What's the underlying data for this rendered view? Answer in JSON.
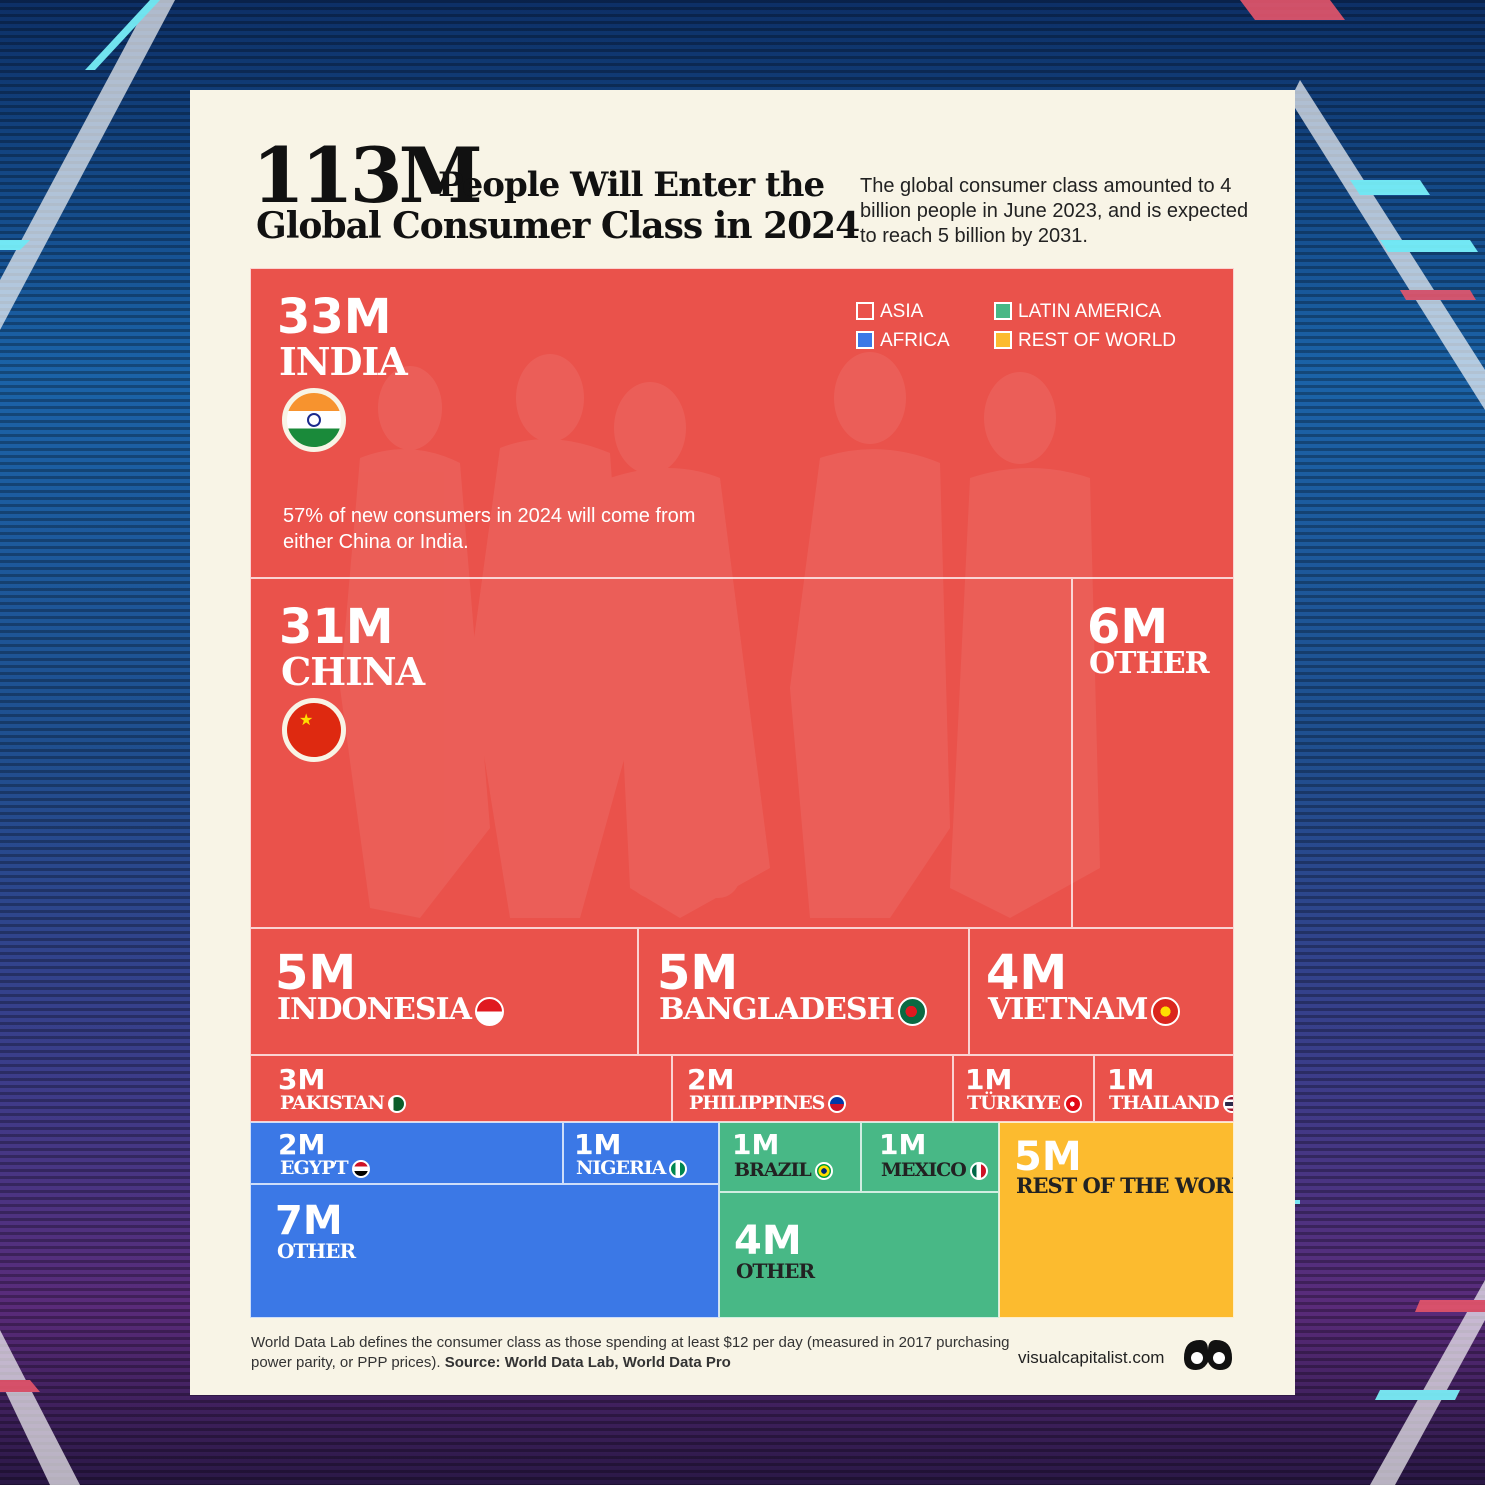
{
  "header": {
    "title_number": "113M",
    "title_line1_rest": "People Will Enter the",
    "title_line2": "Global Consumer Class in 2024",
    "subtitle": "The global consumer class amounted to 4 billion people in June 2023, and is expected to reach 5 billion by 2031."
  },
  "colors": {
    "asia": "#ea524b",
    "africa": "#3b78e6",
    "latin_america": "#48b886",
    "rest_of_world": "#fcbb2f"
  },
  "legend": [
    {
      "label": "ASIA",
      "key": "asia"
    },
    {
      "label": "LATIN AMERICA",
      "key": "latin_america"
    },
    {
      "label": "AFRICA",
      "key": "africa"
    },
    {
      "label": "REST OF WORLD",
      "key": "rest_of_world"
    }
  ],
  "note": "57% of new consumers in 2024 will come from either China or India.",
  "chart_data": {
    "type": "treemap",
    "title": "113M People Will Enter the Global Consumer Class in 2024",
    "total": "113M",
    "nodes": [
      {
        "id": "india",
        "label": "INDIA",
        "value_label": "33M",
        "value": 33,
        "region": "asia",
        "icon": "india-flag-icon"
      },
      {
        "id": "china",
        "label": "CHINA",
        "value_label": "31M",
        "value": 31,
        "region": "asia",
        "icon": "china-flag-icon"
      },
      {
        "id": "asia_other",
        "label": "OTHER",
        "value_label": "6M",
        "value": 6,
        "region": "asia"
      },
      {
        "id": "indonesia",
        "label": "INDONESIA",
        "value_label": "5M",
        "value": 5,
        "region": "asia",
        "icon": "indonesia-flag-icon"
      },
      {
        "id": "bangladesh",
        "label": "BANGLADESH",
        "value_label": "5M",
        "value": 5,
        "region": "asia",
        "icon": "bangladesh-flag-icon"
      },
      {
        "id": "vietnam",
        "label": "VIETNAM",
        "value_label": "4M",
        "value": 4,
        "region": "asia",
        "icon": "vietnam-flag-icon"
      },
      {
        "id": "pakistan",
        "label": "PAKISTAN",
        "value_label": "3M",
        "value": 3,
        "region": "asia",
        "icon": "pakistan-flag-icon"
      },
      {
        "id": "philippines",
        "label": "PHILIPPINES",
        "value_label": "2M",
        "value": 2,
        "region": "asia",
        "icon": "philippines-flag-icon"
      },
      {
        "id": "turkiye",
        "label": "TÜRKIYE",
        "value_label": "1M",
        "value": 1,
        "region": "asia",
        "icon": "turkiye-flag-icon"
      },
      {
        "id": "thailand",
        "label": "THAILAND",
        "value_label": "1M",
        "value": 1,
        "region": "asia",
        "icon": "thailand-flag-icon"
      },
      {
        "id": "egypt",
        "label": "EGYPT",
        "value_label": "2M",
        "value": 2,
        "region": "africa",
        "icon": "egypt-flag-icon"
      },
      {
        "id": "nigeria",
        "label": "NIGERIA",
        "value_label": "1M",
        "value": 1,
        "region": "africa",
        "icon": "nigeria-flag-icon"
      },
      {
        "id": "africa_other",
        "label": "OTHER",
        "value_label": "7M",
        "value": 7,
        "region": "africa"
      },
      {
        "id": "brazil",
        "label": "BRAZIL",
        "value_label": "1M",
        "value": 1,
        "region": "latin_america",
        "icon": "brazil-flag-icon"
      },
      {
        "id": "mexico",
        "label": "MEXICO",
        "value_label": "1M",
        "value": 1,
        "region": "latin_america",
        "icon": "mexico-flag-icon"
      },
      {
        "id": "latam_other",
        "label": "OTHER",
        "value_label": "4M",
        "value": 4,
        "region": "latin_america"
      },
      {
        "id": "rest",
        "label": "REST OF THE WORLD",
        "value_label": "5M",
        "value": 5,
        "region": "rest_of_world"
      }
    ]
  },
  "footer": {
    "footnote": "World Data Lab defines the consumer class as those spending at least $12 per day (measured in 2017 purchasing power parity, or PPP prices).",
    "source": "Source: World Data Lab, World Data Pro",
    "brand": "visualcapitalist.com"
  }
}
